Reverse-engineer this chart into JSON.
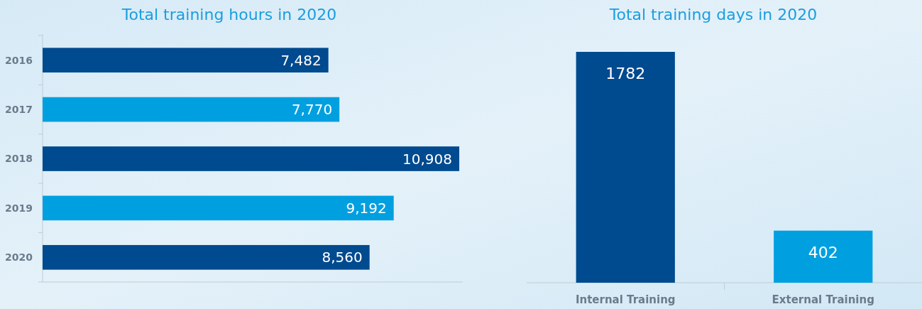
{
  "chart_data": [
    {
      "type": "bar",
      "title": "Total training hours in 2020",
      "orientation": "horizontal",
      "categories": [
        "2016",
        "2017",
        "2018",
        "2019",
        "2020"
      ],
      "values": [
        7482,
        7770,
        10908,
        9192,
        8560
      ],
      "colors": [
        "#004a8f",
        "#00a0e0",
        "#004a8f",
        "#00a0e0",
        "#004a8f"
      ],
      "xlim": [
        0,
        11000
      ],
      "data_labels": true,
      "value_labels": [
        "7,482",
        "7,770",
        "10,908",
        "9,192",
        "8,560"
      ]
    },
    {
      "type": "bar",
      "title": "Total training days in 2020",
      "categories": [
        "Internal Training",
        "External Training"
      ],
      "values": [
        1782,
        402
      ],
      "colors": [
        "#004a8f",
        "#00a0e0"
      ],
      "data_labels": true
    }
  ]
}
